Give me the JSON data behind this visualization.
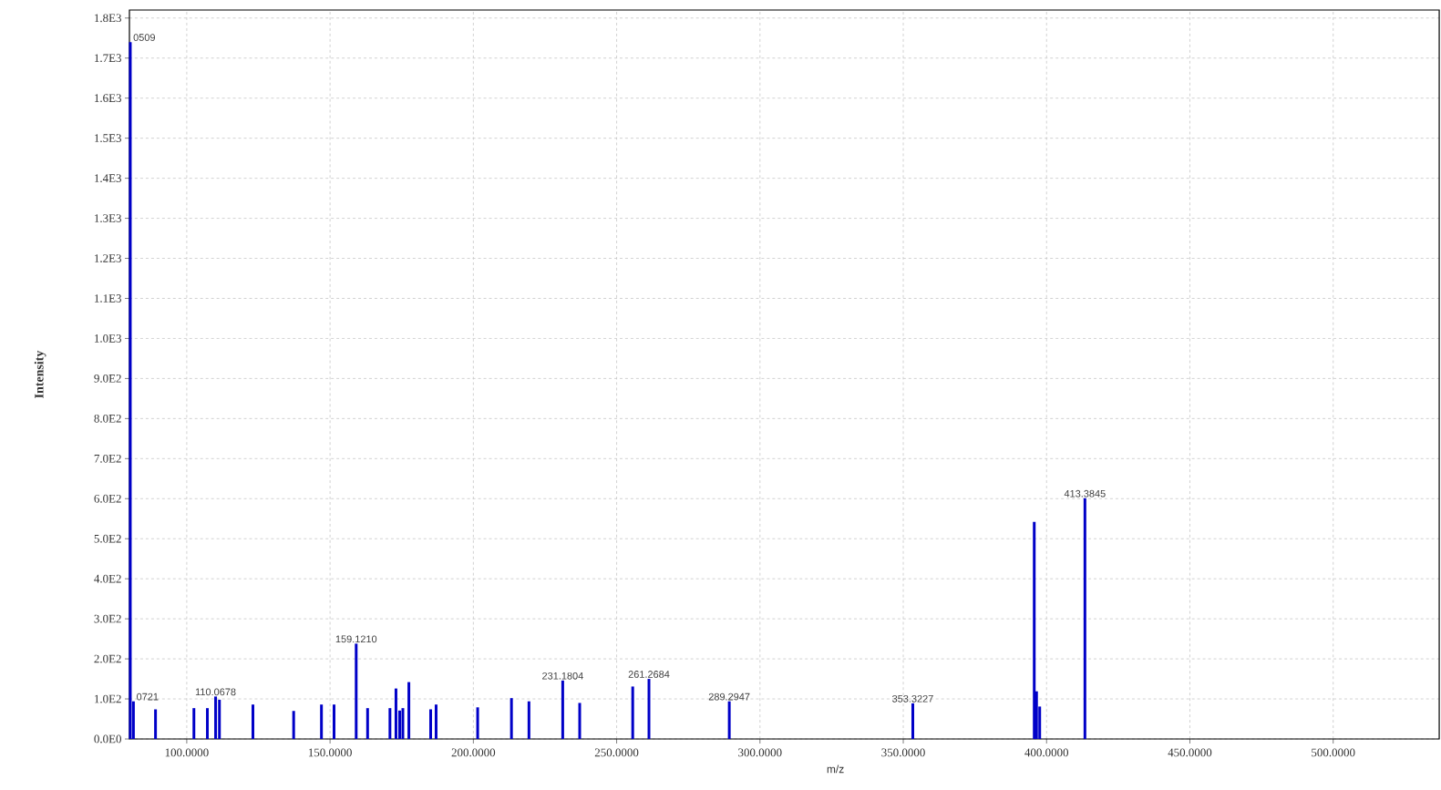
{
  "chart_data": {
    "type": "bar",
    "xlabel": "m/z",
    "ylabel": "Intensity",
    "color": "#0000c8",
    "grid": true,
    "x": [
      80.3,
      81.4,
      89.1,
      102.5,
      107.2,
      110.0678,
      111.4,
      123.1,
      137.3,
      147.0,
      151.4,
      159.121,
      163.1,
      170.9,
      173.0,
      174.3,
      175.4,
      177.5,
      185.1,
      187.0,
      201.5,
      213.3,
      219.4,
      231.1804,
      237.1,
      255.6,
      261.2684,
      289.2947,
      353.3227,
      395.7,
      396.5,
      397.6,
      413.3845
    ],
    "values": [
      1740,
      94,
      74,
      77,
      77,
      106,
      98,
      86,
      70,
      86,
      86,
      238,
      77,
      77,
      126,
      71,
      77,
      142,
      74,
      86,
      79,
      102,
      94,
      146,
      90,
      131,
      150,
      94,
      89,
      542,
      119,
      81,
      601
    ],
    "xlim": [
      80,
      537
    ],
    "ylim": [
      0,
      1820
    ],
    "xticks": [
      {
        "value": 100,
        "label": "100.0000"
      },
      {
        "value": 150,
        "label": "150.0000"
      },
      {
        "value": 200,
        "label": "200.0000"
      },
      {
        "value": 250,
        "label": "250.0000"
      },
      {
        "value": 300,
        "label": "300.0000"
      },
      {
        "value": 350,
        "label": "350.0000"
      },
      {
        "value": 400,
        "label": "400.0000"
      },
      {
        "value": 450,
        "label": "450.0000"
      },
      {
        "value": 500,
        "label": "500.0000"
      }
    ],
    "yticks": [
      {
        "value": 0,
        "label": "0.0E0"
      },
      {
        "value": 100,
        "label": "1.0E2"
      },
      {
        "value": 200,
        "label": "2.0E2"
      },
      {
        "value": 300,
        "label": "3.0E2"
      },
      {
        "value": 400,
        "label": "4.0E2"
      },
      {
        "value": 500,
        "label": "5.0E2"
      },
      {
        "value": 600,
        "label": "6.0E2"
      },
      {
        "value": 700,
        "label": "7.0E2"
      },
      {
        "value": 800,
        "label": "8.0E2"
      },
      {
        "value": 900,
        "label": "9.0E2"
      },
      {
        "value": 1000,
        "label": "1.0E3"
      },
      {
        "value": 1100,
        "label": "1.1E3"
      },
      {
        "value": 1200,
        "label": "1.2E3"
      },
      {
        "value": 1300,
        "label": "1.3E3"
      },
      {
        "value": 1400,
        "label": "1.4E3"
      },
      {
        "value": 1500,
        "label": "1.5E3"
      },
      {
        "value": 1600,
        "label": "1.6E3"
      },
      {
        "value": 1700,
        "label": "1.7E3"
      },
      {
        "value": 1800,
        "label": "1.8E3"
      }
    ],
    "annotations": [
      {
        "text": "0509",
        "x": 80.3,
        "y": 1740
      },
      {
        "text": "0721",
        "x": 81.4,
        "y": 94
      },
      {
        "text": "110.0678",
        "x": 110.0678,
        "y": 106
      },
      {
        "text": "159.1210",
        "x": 159.121,
        "y": 238
      },
      {
        "text": "231.1804",
        "x": 231.1804,
        "y": 146
      },
      {
        "text": "261.2684",
        "x": 261.2684,
        "y": 150
      },
      {
        "text": "289.2947",
        "x": 289.2947,
        "y": 94
      },
      {
        "text": "353.3227",
        "x": 353.3227,
        "y": 89
      },
      {
        "text": "413.3845",
        "x": 413.3845,
        "y": 601
      }
    ]
  }
}
